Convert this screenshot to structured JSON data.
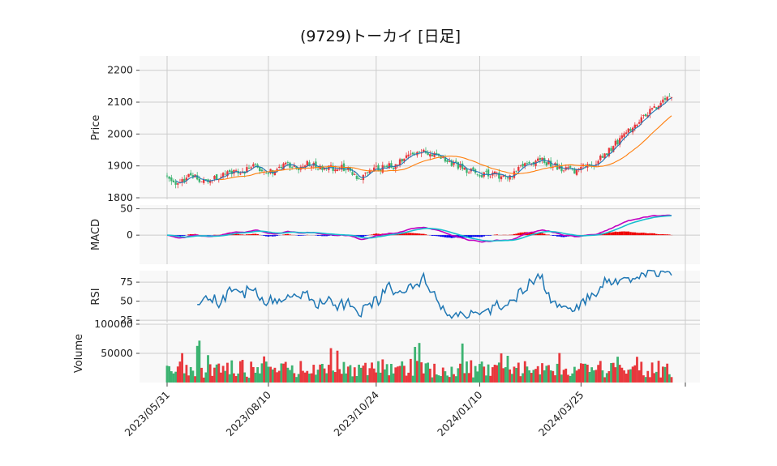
{
  "title": "(9729)トーカイ [日足]",
  "colors": {
    "up": "#e8383d",
    "down": "#3cb371",
    "ma_short": "#1f77b4",
    "ma_long": "#ff7f0e",
    "macd": "#c000c0",
    "signal": "#17becf",
    "hist_pos": "#ee0000",
    "hist_neg": "#0000ee",
    "rsi": "#1f77b4",
    "panel_bg": "#f8f8f8",
    "grid": "#cccccc"
  },
  "chart_data": {
    "type": "candlestick",
    "x_tick_labels": [
      "2023/05/31",
      "2023/08/10",
      "2023/10/24",
      "2024/01/10",
      "2024/03/25"
    ],
    "n_days": 235,
    "panels": [
      {
        "name": "price",
        "ylabel": "Price",
        "yticks": [
          1800,
          1900,
          2000,
          2100,
          2200
        ],
        "ylim": [
          1795,
          2245
        ]
      },
      {
        "name": "macd",
        "ylabel": "MACD",
        "yticks": [
          0,
          50
        ],
        "ylim": [
          -55,
          57
        ]
      },
      {
        "name": "rsi",
        "ylabel": "RSI",
        "yticks": [
          25,
          50,
          75
        ],
        "ylim": [
          22,
          90
        ]
      },
      {
        "name": "volume",
        "ylabel": "Volume",
        "yticks": [
          50000,
          100000
        ],
        "ylim": [
          0,
          100000
        ]
      }
    ],
    "close_path": [
      [
        0,
        1870
      ],
      [
        5,
        1845
      ],
      [
        10,
        1865
      ],
      [
        15,
        1860
      ],
      [
        20,
        1850
      ],
      [
        25,
        1870
      ],
      [
        30,
        1880
      ],
      [
        35,
        1880
      ],
      [
        40,
        1905
      ],
      [
        45,
        1880
      ],
      [
        50,
        1885
      ],
      [
        55,
        1905
      ],
      [
        60,
        1890
      ],
      [
        65,
        1905
      ],
      [
        70,
        1895
      ],
      [
        75,
        1890
      ],
      [
        80,
        1900
      ],
      [
        85,
        1885
      ],
      [
        88,
        1860
      ],
      [
        92,
        1875
      ],
      [
        96,
        1890
      ],
      [
        100,
        1895
      ],
      [
        105,
        1900
      ],
      [
        110,
        1920
      ],
      [
        115,
        1935
      ],
      [
        120,
        1945
      ],
      [
        125,
        1935
      ],
      [
        130,
        1915
      ],
      [
        135,
        1900
      ],
      [
        140,
        1885
      ],
      [
        145,
        1875
      ],
      [
        150,
        1875
      ],
      [
        155,
        1870
      ],
      [
        160,
        1875
      ],
      [
        165,
        1900
      ],
      [
        170,
        1915
      ],
      [
        175,
        1915
      ],
      [
        180,
        1900
      ],
      [
        185,
        1885
      ],
      [
        190,
        1885
      ],
      [
        195,
        1900
      ],
      [
        200,
        1915
      ],
      [
        205,
        1950
      ],
      [
        210,
        1985
      ],
      [
        215,
        2020
      ],
      [
        220,
        2050
      ],
      [
        225,
        2080
      ],
      [
        230,
        2100
      ],
      [
        235,
        2120
      ]
    ]
  }
}
